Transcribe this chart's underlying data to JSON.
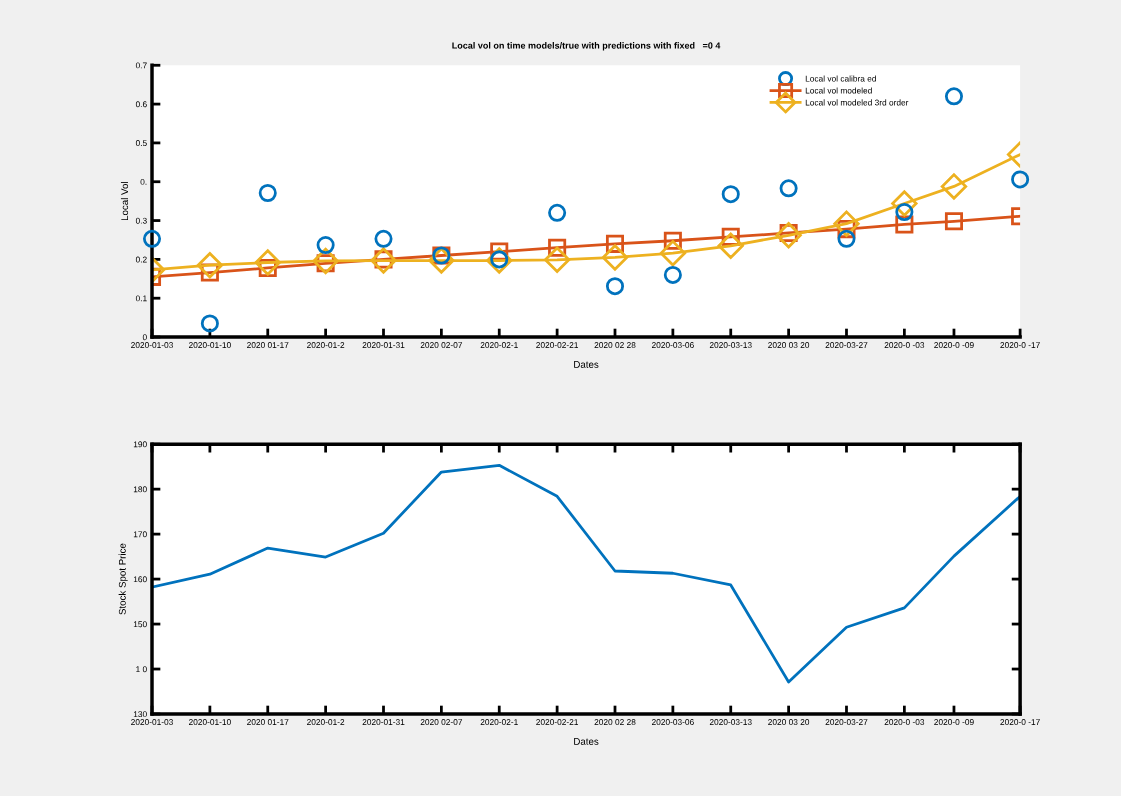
{
  "chart_data": [
    {
      "type": "scatter",
      "title": "Local vol on time models/true with predictions with fixed   =0 4",
      "xlabel": "Dates",
      "ylabel": "Local Vol",
      "x": [
        "2020-01-03",
        "2020-01-10",
        "2020-01-17",
        "2020-01-24",
        "2020-01-31",
        "2020-02-07",
        "2020-02-14",
        "2020-02-21",
        "2020-02-28",
        "2020-03-06",
        "2020-03-13",
        "2020-03-20",
        "2020-03-27",
        "2020-04-03",
        "2020-04-09",
        "2020-04-17"
      ],
      "series": [
        {
          "name": "Local vol calibra ed",
          "type": "scatter",
          "marker": "circle",
          "color": "#0072bd",
          "values": [
            0.253,
            0.035,
            0.371,
            0.237,
            0.253,
            0.21,
            0.2,
            0.32,
            0.131,
            0.16,
            0.368,
            0.383,
            0.253,
            0.322,
            0.62,
            0.406
          ]
        },
        {
          "name": "Local vol modeled",
          "type": "line",
          "marker": "square",
          "color": "#d95319",
          "values": [
            0.155,
            0.166,
            0.178,
            0.19,
            0.2,
            0.21,
            0.22,
            0.23,
            0.24,
            0.248,
            0.258,
            0.268,
            0.278,
            0.29,
            0.298,
            0.311
          ]
        },
        {
          "name": "Local vol modeled 3rd order",
          "type": "line",
          "marker": "diamond",
          "color": "#edb120",
          "values": [
            0.173,
            0.185,
            0.192,
            0.196,
            0.197,
            0.197,
            0.197,
            0.199,
            0.205,
            0.216,
            0.235,
            0.262,
            0.292,
            0.344,
            0.388,
            0.47
          ]
        }
      ],
      "xlim": [
        "2020-01-03",
        "2020-04-17"
      ],
      "xticks": [
        {
          "value": "2020-01-03",
          "label": "2020-01-03"
        },
        {
          "value": "2020-01-10",
          "label": "2020-01-10"
        },
        {
          "value": "2020-01-17",
          "label": "2020 01-17"
        },
        {
          "value": "2020-01-24",
          "label": "2020-01-2"
        },
        {
          "value": "2020-01-31",
          "label": "2020-01-31"
        },
        {
          "value": "2020-02-07",
          "label": "2020 02-07"
        },
        {
          "value": "2020-02-14",
          "label": "2020-02-1"
        },
        {
          "value": "2020-02-21",
          "label": "2020-02-21"
        },
        {
          "value": "2020-02-28",
          "label": "2020 02 28"
        },
        {
          "value": "2020-03-06",
          "label": "2020-03-06"
        },
        {
          "value": "2020-03-13",
          "label": "2020-03-13"
        },
        {
          "value": "2020-03-20",
          "label": "2020 03 20"
        },
        {
          "value": "2020-03-27",
          "label": "2020-03-27"
        },
        {
          "value": "2020-04-03",
          "label": "2020-0 -03"
        },
        {
          "value": "2020-04-09",
          "label": "2020-0 -09"
        },
        {
          "value": "2020-04-17",
          "label": "2020-0 -17"
        }
      ],
      "ylim": [
        0,
        0.7
      ],
      "yticks": [
        0,
        0.1,
        0.2,
        0.3,
        {
          "value": 0.4,
          "label": "0."
        },
        0.5,
        0.6,
        0.7
      ],
      "grid": false,
      "legend": "top right"
    },
    {
      "type": "line",
      "xlabel": "Dates",
      "ylabel": "Stock Spot Price",
      "x": [
        "2020-01-03",
        "2020-01-10",
        "2020-01-17",
        "2020-01-24",
        "2020-01-31",
        "2020-02-07",
        "2020-02-14",
        "2020-02-21",
        "2020-02-28",
        "2020-03-06",
        "2020-03-13",
        "2020-03-20",
        "2020-03-27",
        "2020-04-03",
        "2020-04-09",
        "2020-04-17"
      ],
      "series": [
        {
          "color": "#0072bd",
          "values": [
            158.2,
            161.1,
            166.9,
            164.9,
            170.2,
            183.8,
            185.3,
            178.4,
            161.8,
            161.3,
            158.7,
            137.1,
            149.3,
            153.6,
            165.1,
            178.4
          ]
        }
      ],
      "xlim": [
        "2020-01-03",
        "2020-04-17"
      ],
      "xticks": [
        {
          "value": "2020-01-03",
          "label": "2020-01-03"
        },
        {
          "value": "2020-01-10",
          "label": "2020-01-10"
        },
        {
          "value": "2020-01-17",
          "label": "2020 01-17"
        },
        {
          "value": "2020-01-24",
          "label": "2020-01-2"
        },
        {
          "value": "2020-01-31",
          "label": "2020-01-31"
        },
        {
          "value": "2020-02-07",
          "label": "2020 02-07"
        },
        {
          "value": "2020-02-14",
          "label": "2020-02-1"
        },
        {
          "value": "2020-02-21",
          "label": "2020-02-21"
        },
        {
          "value": "2020-02-28",
          "label": "2020 02 28"
        },
        {
          "value": "2020-03-06",
          "label": "2020-03-06"
        },
        {
          "value": "2020-03-13",
          "label": "2020-03-13"
        },
        {
          "value": "2020-03-20",
          "label": "2020 03 20"
        },
        {
          "value": "2020-03-27",
          "label": "2020-03-27"
        },
        {
          "value": "2020-04-03",
          "label": "2020-0 -03"
        },
        {
          "value": "2020-04-09",
          "label": "2020-0 -09"
        },
        {
          "value": "2020-04-17",
          "label": "2020-0 -17"
        }
      ],
      "ylim": [
        130,
        190
      ],
      "yticks": [
        130,
        {
          "value": 140,
          "label": "1 0"
        },
        150,
        160,
        170,
        180,
        190
      ],
      "grid": false,
      "legend": false
    }
  ]
}
